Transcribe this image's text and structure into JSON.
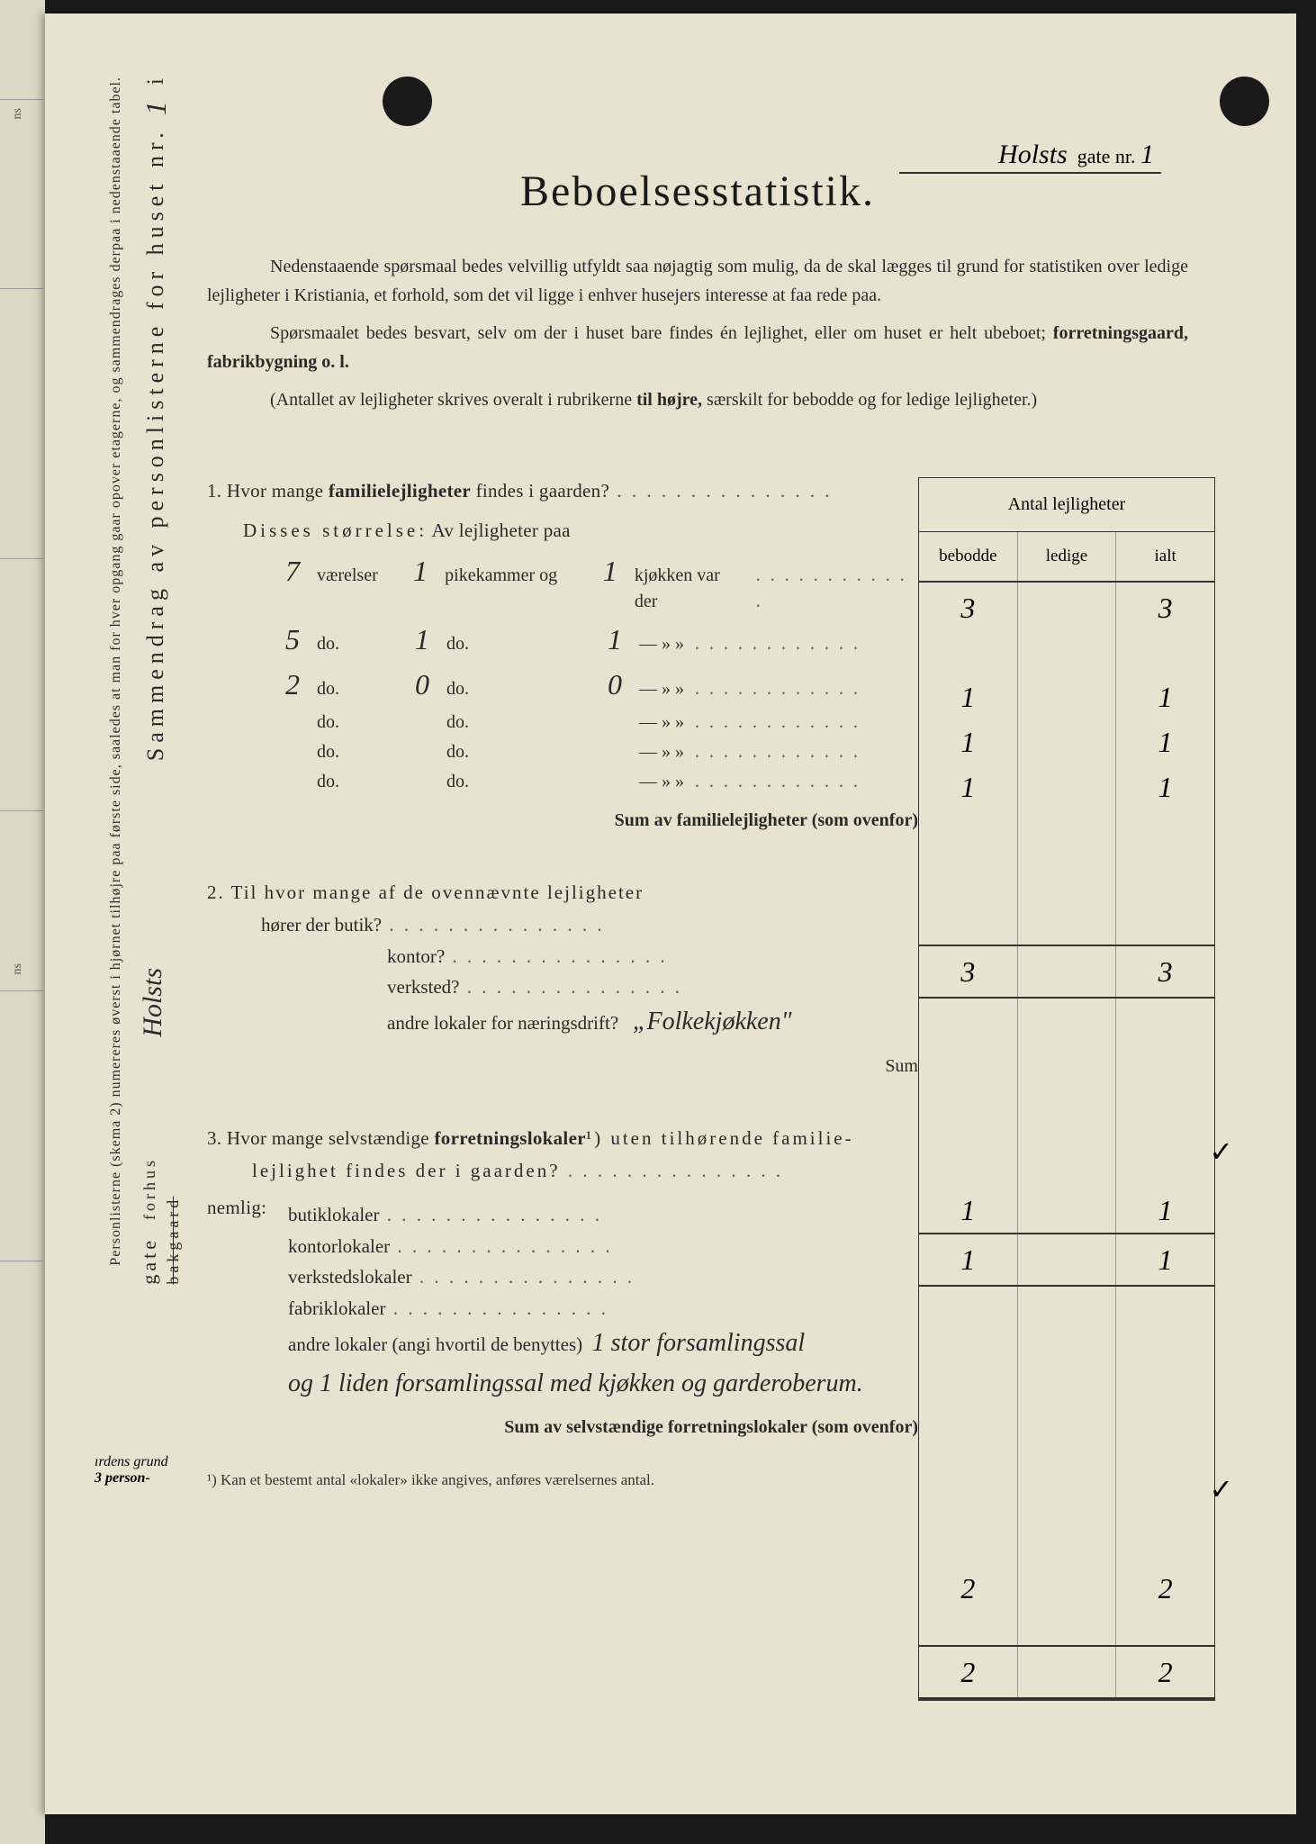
{
  "page_bg": "#1a1a1a",
  "paper_bg": "#e8e3d0",
  "header": {
    "street_hand": "Holsts",
    "gate_label": "gate nr.",
    "gate_nr": "1"
  },
  "title": "Beboelsesstatistik.",
  "intro": {
    "p1_a": "Nedenstaaende spørsmaal bedes velvillig utfyldt saa nøjagtig som mulig, da de skal lægges til grund for statistiken over ledige lejligheter i Kristiania, et forhold, som det vil ligge i enhver husejers interesse at faa rede paa.",
    "p2_a": "Spørsmaalet bedes besvart, selv om der i huset bare findes én lejlighet, eller om huset er helt ubeboet;",
    "p2_b": " forretningsgaard, fabrikbygning o. l.",
    "p3_a": "(Antallet av lejligheter skrives overalt i rubrikerne ",
    "p3_b": "til højre,",
    "p3_c": " særskilt for bebodde og for ledige lejligheter.)"
  },
  "table": {
    "header_top": "Antal lejligheter",
    "col1": "bebodde",
    "col2": "ledige",
    "col3": "ialt"
  },
  "q1": {
    "text_a": "1.  Hvor mange ",
    "text_b": "familielejligheter",
    "text_c": " findes i gaarden?",
    "size_label_a": "Disses størrelse:",
    "size_label_b": "  Av lejligheter paa",
    "rows": [
      {
        "v": "7",
        "pk": "1",
        "kj": "1",
        "b": "1",
        "l": "",
        "i": "1"
      },
      {
        "v": "5",
        "pk": "1",
        "kj": "1",
        "b": "1",
        "l": "",
        "i": "1"
      },
      {
        "v": "2",
        "pk": "0",
        "kj": "0",
        "b": "1",
        "l": "",
        "i": "1"
      },
      {
        "v": "",
        "pk": "",
        "kj": "",
        "b": "",
        "l": "",
        "i": ""
      },
      {
        "v": "",
        "pk": "",
        "kj": "",
        "b": "",
        "l": "",
        "i": ""
      },
      {
        "v": "",
        "pk": "",
        "kj": "",
        "b": "",
        "l": "",
        "i": ""
      }
    ],
    "row_label_first": {
      "v": "værelser",
      "pk": "pikekammer og",
      "kj": "kjøkken var der"
    },
    "row_label_rest": {
      "v": "do.",
      "pk": "do.",
      "kj": "—    »    »"
    },
    "sum_label": "Sum av familielejligheter (som ovenfor)",
    "ans_top": {
      "b": "3",
      "l": "",
      "i": "3"
    },
    "sum": {
      "b": "3",
      "l": "",
      "i": "3"
    }
  },
  "q2": {
    "text": "2.  Til hvor mange af de ovennævnte lejligheter",
    "lines": [
      {
        "label": "hører der butik?",
        "b": "",
        "i": ""
      },
      {
        "label": "kontor?",
        "b": "",
        "i": ""
      },
      {
        "label": "verksted?",
        "b": "",
        "i": ""
      },
      {
        "label": "andre lokaler for næringsdrift?",
        "hand": "„Folkekjøkken\"",
        "b": "1",
        "i": "1"
      }
    ],
    "sum_label": "Sum",
    "sum": {
      "b": "1",
      "l": "",
      "i": "1"
    }
  },
  "q3": {
    "text_a": "3.  Hvor mange selvstændige ",
    "text_b": "forretningslokaler",
    "text_c": "¹) uten tilhørende familie-",
    "text_d": "lejlighet findes der i gaarden?",
    "nemlig": "nemlig:",
    "lines": [
      {
        "label": "butiklokaler",
        "b": "",
        "i": ""
      },
      {
        "label": "kontorlokaler",
        "b": "",
        "i": ""
      },
      {
        "label": "verkstedslokaler",
        "b": "",
        "i": ""
      },
      {
        "label": "fabriklokaler",
        "b": "",
        "i": ""
      }
    ],
    "andre_label": "andre lokaler (angi hvortil de benyttes)",
    "andre_hand1": "1 stor forsamlingssal",
    "andre_hand2": "og 1 liden forsamlingssal med kjøkken og garderoberum.",
    "andre": {
      "b": "2",
      "i": "2"
    },
    "sum_label": "Sum av selvstændige forretningslokaler (som ovenfor)",
    "sum": {
      "b": "2",
      "l": "",
      "i": "2"
    }
  },
  "footnote": "¹)  Kan et bestemt antal «lokaler» ikke angives, anføres værelsernes antal.",
  "sidebar": {
    "main": "Sammendrag av personlisterne for huset nr.",
    "main_nr": "1",
    "sub": "Personlisterne (skema 2) numereres øverst i hjørnet tilhøjre paa første side, saaledes at man for hver opgang gaar opover etagerne, og sammendrages derpaa i nedenstaaende tabel.",
    "hand_street": "Holsts",
    "gate": "gate",
    "forhus": "forhus",
    "bakgaard": "bakgaard",
    "annot1": "ırdens grund",
    "annot2": "3  person-"
  }
}
